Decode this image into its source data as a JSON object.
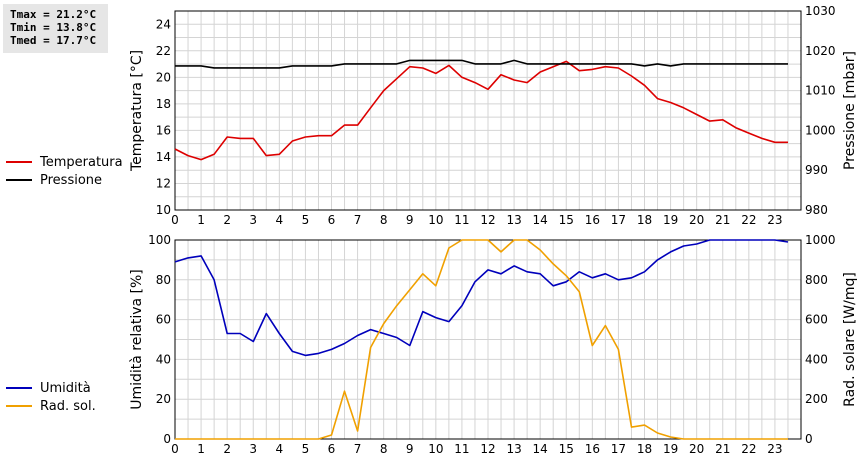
{
  "stats": {
    "tmax": "Tmax = 21.2°C",
    "tmin": "Tmin = 13.8°C",
    "tmed": "Tmed = 17.7°C"
  },
  "legend_top": [
    {
      "label": "Temperatura",
      "color": "#dd0000"
    },
    {
      "label": "Pressione",
      "color": "#000000"
    }
  ],
  "legend_bottom": [
    {
      "label": "Umidità",
      "color": "#0000bb"
    },
    {
      "label": "Rad. sol.",
      "color": "#f0a000"
    }
  ],
  "chart_data": [
    {
      "type": "line",
      "xlim": [
        0,
        24
      ],
      "xticks": [
        0,
        1,
        2,
        3,
        4,
        5,
        6,
        7,
        8,
        9,
        10,
        11,
        12,
        13,
        14,
        15,
        16,
        17,
        18,
        19,
        20,
        21,
        22,
        23
      ],
      "grid": true,
      "ylabel": "Temperatura [°C]",
      "ylim": [
        10,
        25
      ],
      "yticks": [
        10,
        12,
        14,
        16,
        18,
        20,
        22,
        24
      ],
      "ylabel_right": "Pressione [mbar]",
      "ylim_right": [
        980,
        1030
      ],
      "yticks_right": [
        980,
        990,
        1000,
        1010,
        1020,
        1030
      ],
      "series": [
        {
          "name": "Temperatura",
          "axis": "left",
          "color": "#dd0000",
          "x": [
            0,
            0.5,
            1,
            1.5,
            2,
            2.5,
            3,
            3.5,
            4,
            4.5,
            5,
            5.5,
            6,
            6.5,
            7,
            7.5,
            8,
            8.5,
            9,
            9.5,
            10,
            10.5,
            11,
            11.5,
            12,
            12.5,
            13,
            13.5,
            14,
            14.5,
            15,
            15.5,
            16,
            16.5,
            17,
            17.5,
            18,
            18.5,
            19,
            19.5,
            20,
            20.5,
            21,
            21.5,
            22,
            22.5,
            23,
            23.5
          ],
          "y": [
            14.6,
            14.1,
            13.8,
            14.2,
            15.5,
            15.4,
            15.4,
            14.1,
            14.2,
            15.2,
            15.5,
            15.6,
            15.6,
            16.4,
            16.4,
            17.7,
            19.0,
            19.9,
            20.8,
            20.7,
            20.3,
            20.9,
            20.0,
            19.6,
            19.1,
            20.2,
            19.8,
            19.6,
            20.4,
            20.8,
            21.2,
            20.5,
            20.6,
            20.8,
            20.7,
            20.1,
            19.4,
            18.4,
            18.1,
            17.7,
            17.2,
            16.7,
            16.8,
            16.2,
            15.8,
            15.4,
            15.1,
            15.1
          ]
        },
        {
          "name": "Pressione",
          "axis": "right",
          "color": "#000000",
          "x": [
            0,
            1,
            1.5,
            2,
            2.5,
            3,
            3.5,
            4,
            4.5,
            5,
            5.5,
            6,
            6.5,
            7,
            7.5,
            8,
            8.5,
            9,
            9.5,
            10,
            10.5,
            11,
            11.5,
            12,
            12.5,
            13,
            13.5,
            14,
            14.5,
            15,
            15.5,
            16,
            16.5,
            17,
            17.5,
            18,
            18.5,
            19,
            19.5,
            20,
            20.5,
            21,
            21.5,
            22,
            22.5,
            23,
            23.5
          ],
          "y": [
            1016.2,
            1016.2,
            1015.7,
            1015.7,
            1015.7,
            1015.7,
            1015.7,
            1015.7,
            1016.2,
            1016.2,
            1016.2,
            1016.2,
            1016.7,
            1016.7,
            1016.7,
            1016.7,
            1016.7,
            1017.6,
            1017.6,
            1017.6,
            1017.6,
            1017.6,
            1016.7,
            1016.7,
            1016.7,
            1017.6,
            1016.7,
            1016.7,
            1016.7,
            1016.7,
            1016.7,
            1016.7,
            1016.7,
            1016.7,
            1016.7,
            1016.2,
            1016.7,
            1016.2,
            1016.7,
            1016.7,
            1016.7,
            1016.7,
            1016.7,
            1016.7,
            1016.7,
            1016.7,
            1016.7
          ]
        }
      ]
    },
    {
      "type": "line",
      "xlim": [
        0,
        24
      ],
      "xticks": [
        0,
        1,
        2,
        3,
        4,
        5,
        6,
        7,
        8,
        9,
        10,
        11,
        12,
        13,
        14,
        15,
        16,
        17,
        18,
        19,
        20,
        21,
        22,
        23
      ],
      "grid": true,
      "ylabel": "Umidità relativa [%]",
      "ylim": [
        0,
        100
      ],
      "yticks": [
        0,
        20,
        40,
        60,
        80,
        100
      ],
      "ylabel_right": "Rad. solare [W/mq]",
      "ylim_right": [
        0,
        1000
      ],
      "yticks_right": [
        0,
        200,
        400,
        600,
        800,
        1000
      ],
      "series": [
        {
          "name": "Umidità",
          "axis": "left",
          "color": "#0000bb",
          "x": [
            0,
            0.5,
            1,
            1.5,
            2,
            2.5,
            3,
            3.5,
            4,
            4.5,
            5,
            5.5,
            6,
            6.5,
            7,
            7.5,
            8,
            8.5,
            9,
            9.5,
            10,
            10.5,
            11,
            11.5,
            12,
            12.5,
            13,
            13.5,
            14,
            14.5,
            15,
            15.5,
            16,
            16.5,
            17,
            17.5,
            18,
            18.5,
            19,
            19.5,
            20,
            20.5,
            21,
            21.5,
            22,
            22.5,
            23,
            23.5
          ],
          "y": [
            89,
            91,
            92,
            80,
            53,
            53,
            49,
            63,
            53,
            44,
            42,
            43,
            45,
            48,
            52,
            55,
            53,
            51,
            47,
            64,
            61,
            59,
            67,
            79,
            85,
            83,
            87,
            84,
            83,
            77,
            79,
            84,
            81,
            83,
            80,
            81,
            84,
            90,
            94,
            97,
            98,
            100,
            100,
            100,
            100,
            100,
            100,
            99
          ]
        },
        {
          "name": "Rad. sol.",
          "axis": "right",
          "color": "#f0a000",
          "x": [
            0,
            0.5,
            1,
            1.5,
            2,
            2.5,
            3,
            3.5,
            4,
            4.5,
            5,
            5.5,
            6,
            6.5,
            7,
            7.5,
            8,
            8.5,
            9,
            9.5,
            10,
            10.5,
            11,
            11.5,
            12,
            12.5,
            13,
            13.5,
            14,
            14.5,
            15,
            15.5,
            16,
            16.5,
            17,
            17.5,
            18,
            18.5,
            19,
            19.5,
            20,
            20.5,
            21,
            21.5,
            22,
            22.5,
            23,
            23.5
          ],
          "y": [
            0,
            0,
            0,
            0,
            0,
            0,
            0,
            0,
            0,
            0,
            0,
            0,
            20,
            240,
            40,
            460,
            580,
            670,
            750,
            830,
            770,
            960,
            1000,
            1010,
            1010,
            940,
            1010,
            1000,
            950,
            880,
            820,
            740,
            470,
            570,
            450,
            60,
            70,
            30,
            10,
            0,
            0,
            0,
            0,
            0,
            0,
            0,
            0,
            0
          ]
        }
      ]
    }
  ]
}
